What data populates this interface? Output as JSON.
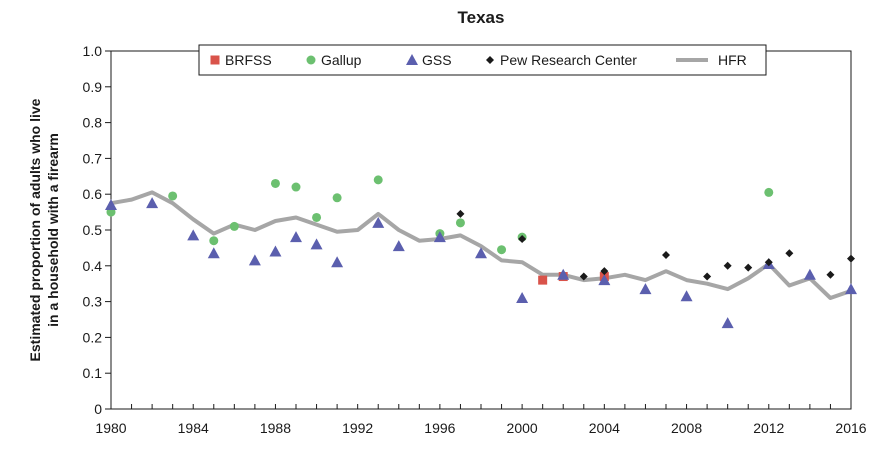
{
  "chart_data": {
    "type": "scatter",
    "title": "Texas",
    "ylabel_line1": "Estimated proportion of adults who live",
    "ylabel_line2": "in a household with a firearm",
    "xlabel": "",
    "xlim": [
      1980,
      2016
    ],
    "ylim": [
      0,
      1.0
    ],
    "x_ticks": [
      1980,
      1984,
      1988,
      1992,
      1996,
      2000,
      2004,
      2008,
      2012,
      2016
    ],
    "y_ticks": [
      "0",
      "0.1",
      "0.2",
      "0.3",
      "0.4",
      "0.5",
      "0.6",
      "0.7",
      "0.8",
      "0.9",
      "1.0"
    ],
    "grid": false,
    "legend_position": "top",
    "series": [
      {
        "name": "BRFSS",
        "marker": "square",
        "color": "#d9534a",
        "points": [
          [
            2001,
            0.36
          ],
          [
            2002,
            0.37
          ],
          [
            2004,
            0.37
          ]
        ]
      },
      {
        "name": "Gallup",
        "marker": "circle",
        "color": "#6cc070",
        "points": [
          [
            1980,
            0.55
          ],
          [
            1983,
            0.595
          ],
          [
            1985,
            0.47
          ],
          [
            1986,
            0.51
          ],
          [
            1988,
            0.63
          ],
          [
            1989,
            0.62
          ],
          [
            1990,
            0.535
          ],
          [
            1991,
            0.59
          ],
          [
            1993,
            0.64
          ],
          [
            1996,
            0.49
          ],
          [
            1997,
            0.52
          ],
          [
            1999,
            0.445
          ],
          [
            2000,
            0.48
          ],
          [
            2012,
            0.605
          ]
        ]
      },
      {
        "name": "GSS",
        "marker": "triangle",
        "color": "#5b5fae",
        "points": [
          [
            1980,
            0.57
          ],
          [
            1982,
            0.575
          ],
          [
            1984,
            0.485
          ],
          [
            1985,
            0.435
          ],
          [
            1987,
            0.415
          ],
          [
            1988,
            0.44
          ],
          [
            1989,
            0.48
          ],
          [
            1990,
            0.46
          ],
          [
            1991,
            0.41
          ],
          [
            1993,
            0.52
          ],
          [
            1994,
            0.455
          ],
          [
            1996,
            0.48
          ],
          [
            1998,
            0.435
          ],
          [
            2000,
            0.31
          ],
          [
            2002,
            0.375
          ],
          [
            2004,
            0.36
          ],
          [
            2006,
            0.335
          ],
          [
            2008,
            0.315
          ],
          [
            2010,
            0.24
          ],
          [
            2012,
            0.405
          ],
          [
            2014,
            0.375
          ],
          [
            2016,
            0.335
          ]
        ]
      },
      {
        "name": "Pew Research Center",
        "marker": "diamond",
        "color": "#1a1a1a",
        "points": [
          [
            1997,
            0.545
          ],
          [
            2000,
            0.475
          ],
          [
            2003,
            0.37
          ],
          [
            2004,
            0.385
          ],
          [
            2007,
            0.43
          ],
          [
            2009,
            0.37
          ],
          [
            2010,
            0.4
          ],
          [
            2011,
            0.395
          ],
          [
            2012,
            0.41
          ],
          [
            2013,
            0.435
          ],
          [
            2015,
            0.375
          ],
          [
            2016,
            0.42
          ]
        ]
      },
      {
        "name": "HFR",
        "marker": "line",
        "color": "#a6a6a6",
        "points": [
          [
            1980,
            0.575
          ],
          [
            1981,
            0.585
          ],
          [
            1982,
            0.605
          ],
          [
            1983,
            0.575
          ],
          [
            1984,
            0.53
          ],
          [
            1985,
            0.49
          ],
          [
            1986,
            0.515
          ],
          [
            1987,
            0.5
          ],
          [
            1988,
            0.525
          ],
          [
            1989,
            0.535
          ],
          [
            1990,
            0.515
          ],
          [
            1991,
            0.495
          ],
          [
            1992,
            0.5
          ],
          [
            1993,
            0.545
          ],
          [
            1994,
            0.5
          ],
          [
            1995,
            0.47
          ],
          [
            1996,
            0.475
          ],
          [
            1997,
            0.485
          ],
          [
            1998,
            0.455
          ],
          [
            1999,
            0.415
          ],
          [
            2000,
            0.41
          ],
          [
            2001,
            0.375
          ],
          [
            2002,
            0.375
          ],
          [
            2003,
            0.36
          ],
          [
            2004,
            0.365
          ],
          [
            2005,
            0.375
          ],
          [
            2006,
            0.36
          ],
          [
            2007,
            0.385
          ],
          [
            2008,
            0.36
          ],
          [
            2009,
            0.35
          ],
          [
            2010,
            0.335
          ],
          [
            2011,
            0.365
          ],
          [
            2012,
            0.405
          ],
          [
            2013,
            0.345
          ],
          [
            2014,
            0.365
          ],
          [
            2015,
            0.31
          ],
          [
            2016,
            0.33
          ]
        ]
      }
    ]
  }
}
